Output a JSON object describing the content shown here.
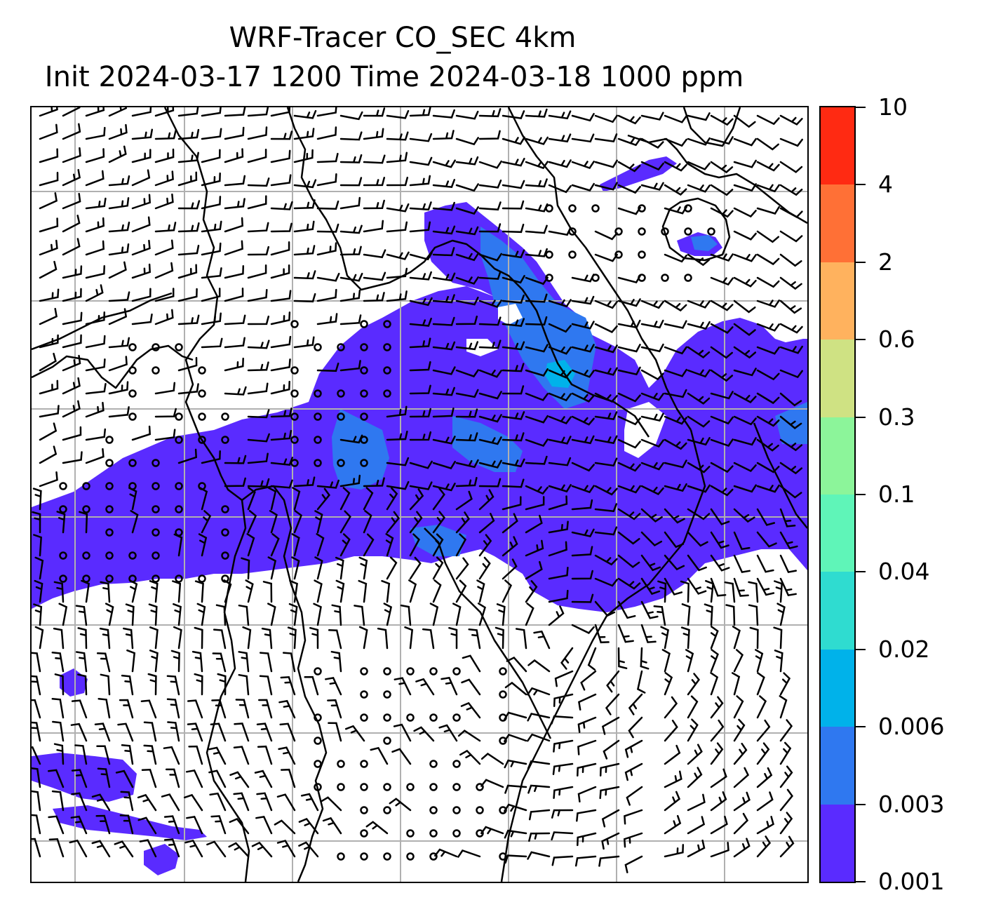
{
  "title": {
    "line1": "WRF-Tracer CO_SEC 4km",
    "line2": "Init 2024-03-17 1200 Time 2024-03-18 1000 ppm"
  },
  "map": {
    "variable": "CO_SEC tracer",
    "overlay": "wind barbs",
    "gridlines": true,
    "coastlines": true
  },
  "colorbar": {
    "levels": [
      "0.001",
      "0.003",
      "0.006",
      "0.02",
      "0.04",
      "0.1",
      "0.3",
      "0.6",
      "2",
      "4",
      "10"
    ],
    "colors": [
      "#5a2bff",
      "#2f78f0",
      "#00b2ea",
      "#2fdcd0",
      "#5ff5b8",
      "#8cf59a",
      "#cfe283",
      "#ffb25e",
      "#ff7036",
      "#ff2a12"
    ]
  }
}
